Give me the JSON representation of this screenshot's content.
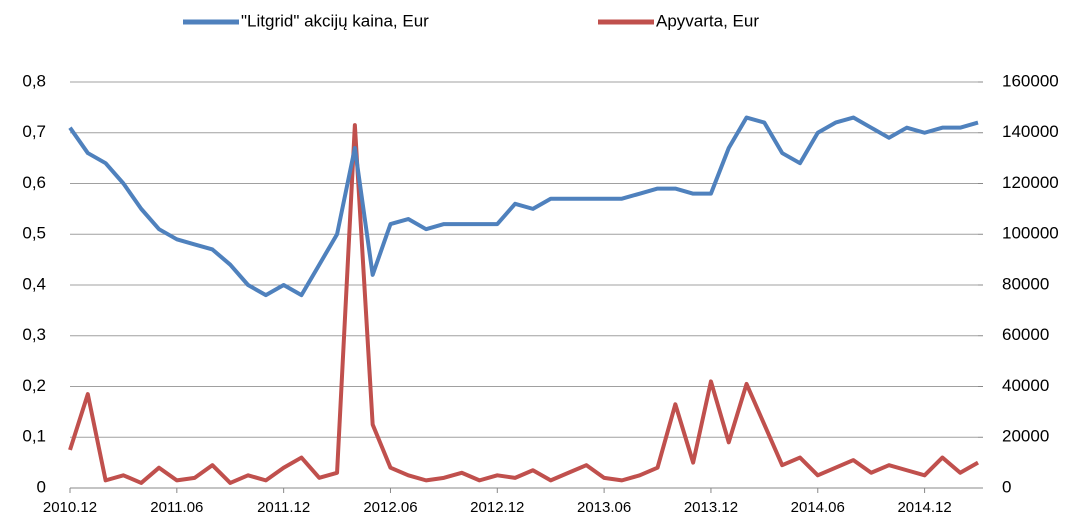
{
  "chart_data": {
    "type": "line",
    "x": [
      "2010.12",
      "2011.01",
      "2011.02",
      "2011.03",
      "2011.04",
      "2011.05",
      "2011.06",
      "2011.07",
      "2011.08",
      "2011.09",
      "2011.10",
      "2011.11",
      "2011.12",
      "2012.01",
      "2012.02",
      "2012.03",
      "2012.04",
      "2012.05",
      "2012.06",
      "2012.07",
      "2012.08",
      "2012.09",
      "2012.10",
      "2012.11",
      "2012.12",
      "2013.01",
      "2013.02",
      "2013.03",
      "2013.04",
      "2013.05",
      "2013.06",
      "2013.07",
      "2013.08",
      "2013.09",
      "2013.10",
      "2013.11",
      "2013.12",
      "2014.01",
      "2014.02",
      "2014.03",
      "2014.04",
      "2014.05",
      "2014.06",
      "2014.07",
      "2014.08",
      "2014.09",
      "2014.10",
      "2014.11",
      "2014.12",
      "2015.01",
      "2015.02",
      "2015.03"
    ],
    "xlim": [
      "2010.12",
      "2015.03"
    ],
    "xticks": [
      "2010.12",
      "2011.06",
      "2011.12",
      "2012.06",
      "2012.12",
      "2013.06",
      "2013.12",
      "2014.06",
      "2014.12"
    ],
    "series": [
      {
        "name": "\"Litgrid\" akcijų kaina, Eur",
        "color": "#4f81bd",
        "values": [
          0.71,
          0.66,
          0.64,
          0.6,
          0.55,
          0.51,
          0.49,
          0.48,
          0.47,
          0.44,
          0.4,
          0.38,
          0.4,
          0.38,
          0.44,
          0.5,
          0.67,
          0.42,
          0.52,
          0.53,
          0.51,
          0.52,
          0.52,
          0.52,
          0.52,
          0.56,
          0.55,
          0.57,
          0.57,
          0.57,
          0.57,
          0.57,
          0.58,
          0.59,
          0.59,
          0.58,
          0.58,
          0.67,
          0.73,
          0.72,
          0.66,
          0.64,
          0.7,
          0.72,
          0.73,
          0.71,
          0.69,
          0.71,
          0.7,
          0.71,
          0.71,
          0.72
        ]
      },
      {
        "name": "Apyvarta, Eur",
        "color": "#c0504d",
        "axis": "y2",
        "values": [
          15000,
          37000,
          3000,
          5000,
          2000,
          8000,
          3000,
          4000,
          9000,
          2000,
          5000,
          3000,
          8000,
          12000,
          4000,
          6000,
          143000,
          25000,
          8000,
          5000,
          3000,
          4000,
          6000,
          3000,
          5000,
          4000,
          7000,
          3000,
          6000,
          9000,
          4000,
          3000,
          5000,
          8000,
          33000,
          10000,
          42000,
          18000,
          41000,
          25000,
          9000,
          12000,
          5000,
          8000,
          11000,
          6000,
          9000,
          7000,
          5000,
          12000,
          6000,
          10000
        ]
      }
    ],
    "ylim": [
      0,
      0.8
    ],
    "yticks": [
      0,
      {
        "value": 0.1,
        "label": "0,1"
      },
      {
        "value": 0.2,
        "label": "0,2"
      },
      {
        "value": 0.3,
        "label": "0,3"
      },
      {
        "value": 0.4,
        "label": "0,4"
      },
      {
        "value": 0.5,
        "label": "0,5"
      },
      {
        "value": 0.6,
        "label": "0,6"
      },
      {
        "value": 0.7,
        "label": "0,7"
      },
      {
        "value": 0.8,
        "label": "0,8"
      }
    ],
    "y2lim": [
      0,
      160000
    ],
    "y2ticks": [
      0,
      20000,
      40000,
      60000,
      80000,
      100000,
      120000,
      140000,
      160000
    ],
    "grid": true,
    "legend": "top"
  }
}
